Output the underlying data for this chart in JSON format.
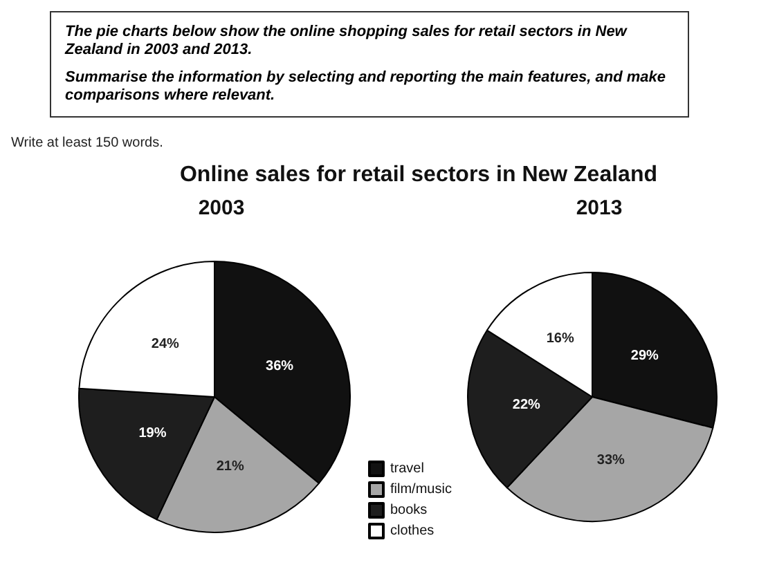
{
  "chart_data": {
    "type": "pie",
    "title": "Online sales for retail sectors in New Zealand",
    "annotations": [
      "The pie charts below show the online shopping sales for retail sectors in New Zealand in 2003 and 2013.",
      "Summarise the information by selecting and reporting the main features, and make comparisons where relevant.",
      "Write at least 150 words."
    ],
    "categories": [
      "travel",
      "film/music",
      "books",
      "clothes"
    ],
    "colors": [
      "#111111",
      "#a6a6a6",
      "#1e1e1e",
      "#ffffff"
    ],
    "legend": "bottom",
    "series": [
      {
        "name": "2003",
        "values": [
          36,
          21,
          19,
          24
        ],
        "value_labels": [
          "36%",
          "21%",
          "19%",
          "24%"
        ]
      },
      {
        "name": "2013",
        "values": [
          29,
          33,
          22,
          16
        ],
        "value_labels": [
          "29%",
          "33%",
          "22%",
          "16%"
        ]
      }
    ]
  }
}
